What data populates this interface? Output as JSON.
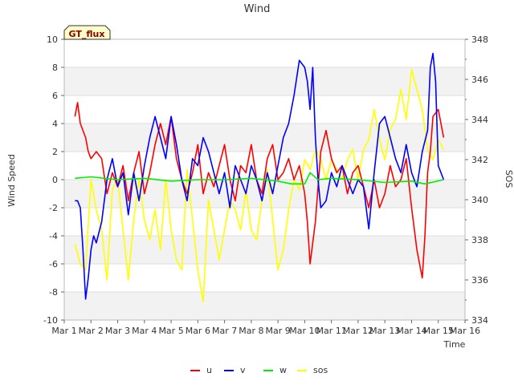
{
  "chart_data": {
    "type": "line",
    "title": "Wind",
    "xlabel": "Time",
    "ylabel": "Wind Speed",
    "y2label": "SOS",
    "badge": "GT_flux",
    "xlim": [
      1,
      16
    ],
    "ylim": [
      -10,
      10
    ],
    "y2lim": [
      334,
      348
    ],
    "x_ticks": [
      {
        "value": 1,
        "label": "Mar 1"
      },
      {
        "value": 2,
        "label": "Mar 2"
      },
      {
        "value": 3,
        "label": "Mar 3"
      },
      {
        "value": 4,
        "label": "Mar 4"
      },
      {
        "value": 5,
        "label": "Mar 5"
      },
      {
        "value": 6,
        "label": "Mar 6"
      },
      {
        "value": 7,
        "label": "Mar 7"
      },
      {
        "value": 8,
        "label": "Mar 8"
      },
      {
        "value": 9,
        "label": "Mar 9"
      },
      {
        "value": 10,
        "label": "Mar 10"
      },
      {
        "value": 11,
        "label": "Mar 11"
      },
      {
        "value": 12,
        "label": "Mar 12"
      },
      {
        "value": 13,
        "label": "Mar 13"
      },
      {
        "value": 14,
        "label": "Mar 14"
      },
      {
        "value": 15,
        "label": "Mar 15"
      },
      {
        "value": 16,
        "label": "Mar 16"
      }
    ],
    "y_ticks": [
      -10,
      -8,
      -6,
      -4,
      -2,
      0,
      2,
      4,
      6,
      8,
      10
    ],
    "y2_ticks": [
      334,
      336,
      338,
      340,
      342,
      344,
      346,
      348
    ],
    "grid": true,
    "legend_position": "bottom-center",
    "series": [
      {
        "name": "u",
        "axis": "left",
        "color": "#ff0000",
        "x": [
          1.4,
          1.5,
          1.6,
          1.8,
          1.9,
          2.0,
          2.2,
          2.4,
          2.6,
          2.8,
          3.0,
          3.2,
          3.4,
          3.6,
          3.8,
          4.0,
          4.2,
          4.4,
          4.6,
          4.8,
          5.0,
          5.2,
          5.4,
          5.6,
          5.8,
          6.0,
          6.2,
          6.4,
          6.6,
          6.8,
          7.0,
          7.2,
          7.4,
          7.6,
          7.8,
          8.0,
          8.2,
          8.4,
          8.6,
          8.8,
          9.0,
          9.2,
          9.4,
          9.6,
          9.8,
          10.0,
          10.1,
          10.2,
          10.4,
          10.6,
          10.8,
          11.0,
          11.2,
          11.4,
          11.6,
          11.8,
          12.0,
          12.2,
          12.4,
          12.6,
          12.8,
          13.0,
          13.2,
          13.4,
          13.6,
          13.8,
          14.0,
          14.2,
          14.4,
          14.5,
          14.6,
          14.7,
          14.8,
          15.0,
          15.2
        ],
        "y": [
          4.5,
          5.5,
          4.0,
          3.0,
          2.0,
          1.5,
          2.0,
          1.5,
          -1.0,
          0.5,
          -0.5,
          1.0,
          -1.5,
          0.5,
          2.0,
          -1.0,
          0.5,
          2.5,
          4.0,
          2.5,
          4.5,
          1.5,
          0.0,
          -1.0,
          0.5,
          2.5,
          -1.0,
          0.5,
          -0.5,
          1.0,
          2.5,
          0.0,
          -1.5,
          1.0,
          0.5,
          2.5,
          0.0,
          -1.0,
          1.5,
          2.5,
          0.0,
          0.5,
          1.5,
          0.0,
          1.0,
          -1.0,
          -3.0,
          -6.0,
          -3.0,
          2.0,
          3.5,
          1.5,
          0.5,
          1.0,
          -1.0,
          0.5,
          1.0,
          -0.5,
          -2.0,
          0.0,
          -2.0,
          -1.0,
          1.0,
          -0.5,
          0.0,
          1.5,
          -2.0,
          -5.0,
          -7.0,
          -4.0,
          0.5,
          2.0,
          4.5,
          5.0,
          3.0
        ]
      },
      {
        "name": "v",
        "axis": "left",
        "color": "#0000ff",
        "x": [
          1.4,
          1.5,
          1.6,
          1.7,
          1.8,
          1.9,
          2.0,
          2.1,
          2.2,
          2.4,
          2.6,
          2.8,
          3.0,
          3.2,
          3.4,
          3.6,
          3.8,
          4.0,
          4.2,
          4.4,
          4.6,
          4.8,
          5.0,
          5.2,
          5.4,
          5.6,
          5.8,
          6.0,
          6.2,
          6.4,
          6.6,
          6.8,
          7.0,
          7.2,
          7.4,
          7.6,
          7.8,
          8.0,
          8.2,
          8.4,
          8.6,
          8.8,
          9.0,
          9.2,
          9.4,
          9.6,
          9.8,
          10.0,
          10.1,
          10.2,
          10.3,
          10.4,
          10.5,
          10.6,
          10.8,
          11.0,
          11.2,
          11.4,
          11.6,
          11.8,
          12.0,
          12.2,
          12.4,
          12.6,
          12.8,
          13.0,
          13.2,
          13.4,
          13.6,
          13.8,
          14.0,
          14.2,
          14.4,
          14.6,
          14.7,
          14.8,
          14.9,
          15.0,
          15.2
        ],
        "y": [
          -1.5,
          -1.5,
          -2.0,
          -5.0,
          -8.5,
          -7.0,
          -5.0,
          -4.0,
          -4.5,
          -3.0,
          0.0,
          1.5,
          -0.5,
          0.5,
          -2.5,
          0.5,
          -1.5,
          1.0,
          3.0,
          4.5,
          3.0,
          1.5,
          4.5,
          2.5,
          0.0,
          -1.5,
          1.5,
          1.0,
          3.0,
          2.0,
          0.5,
          -1.0,
          0.5,
          -2.0,
          1.0,
          0.0,
          -1.0,
          1.0,
          0.0,
          -1.5,
          0.5,
          -1.0,
          1.0,
          3.0,
          4.0,
          6.0,
          8.5,
          8.0,
          7.0,
          5.0,
          8.0,
          3.0,
          0.0,
          -2.0,
          -1.5,
          0.5,
          -0.5,
          1.0,
          0.0,
          -1.0,
          0.0,
          -0.5,
          -3.5,
          0.5,
          4.0,
          4.5,
          3.0,
          1.5,
          0.5,
          2.5,
          0.5,
          -0.5,
          2.0,
          3.5,
          8.0,
          9.0,
          7.0,
          1.0,
          0.0
        ]
      },
      {
        "name": "w",
        "axis": "left",
        "color": "#00ee00",
        "x": [
          1.4,
          2.0,
          3.0,
          4.0,
          5.0,
          6.0,
          7.0,
          8.0,
          9.0,
          9.5,
          10.0,
          10.2,
          10.5,
          11.0,
          12.0,
          13.0,
          14.0,
          14.5,
          15.2
        ],
        "y": [
          0.1,
          0.2,
          0.0,
          0.1,
          -0.1,
          0.0,
          0.0,
          0.1,
          -0.1,
          -0.3,
          -0.3,
          0.5,
          0.0,
          0.1,
          0.0,
          -0.2,
          -0.1,
          -0.3,
          0.0
        ]
      },
      {
        "name": "sos",
        "axis": "right",
        "color": "#ffff00",
        "x": [
          1.4,
          1.6,
          1.8,
          2.0,
          2.2,
          2.4,
          2.6,
          2.8,
          3.0,
          3.2,
          3.4,
          3.6,
          3.8,
          4.0,
          4.2,
          4.4,
          4.6,
          4.8,
          5.0,
          5.2,
          5.4,
          5.6,
          5.8,
          6.0,
          6.2,
          6.4,
          6.6,
          6.8,
          7.0,
          7.2,
          7.4,
          7.6,
          7.8,
          8.0,
          8.2,
          8.4,
          8.6,
          8.8,
          9.0,
          9.2,
          9.4,
          9.6,
          9.8,
          10.0,
          10.2,
          10.4,
          10.6,
          10.8,
          11.0,
          11.2,
          11.4,
          11.6,
          11.8,
          12.0,
          12.2,
          12.4,
          12.6,
          12.8,
          13.0,
          13.2,
          13.4,
          13.6,
          13.8,
          14.0,
          14.2,
          14.4,
          14.6,
          14.8,
          15.0,
          15.2
        ],
        "y": [
          337.8,
          336.8,
          336.5,
          341.0,
          339.5,
          338.5,
          336.0,
          340.5,
          341.0,
          338.5,
          336.0,
          339.0,
          341.0,
          339.0,
          338.0,
          339.5,
          337.5,
          341.0,
          338.5,
          337.0,
          336.5,
          341.5,
          339.0,
          336.5,
          334.9,
          340.0,
          338.5,
          337.0,
          338.5,
          340.0,
          339.5,
          338.5,
          340.5,
          338.5,
          338.0,
          340.0,
          341.5,
          339.0,
          336.5,
          337.5,
          339.5,
          341.0,
          340.5,
          342.0,
          341.5,
          342.5,
          342.0,
          341.0,
          342.0,
          341.5,
          341.0,
          342.0,
          342.5,
          341.0,
          342.5,
          343.0,
          344.5,
          343.0,
          342.0,
          343.5,
          344.0,
          345.5,
          344.0,
          346.5,
          345.5,
          344.5,
          342.5,
          342.0,
          343.0,
          342.5
        ]
      }
    ]
  }
}
